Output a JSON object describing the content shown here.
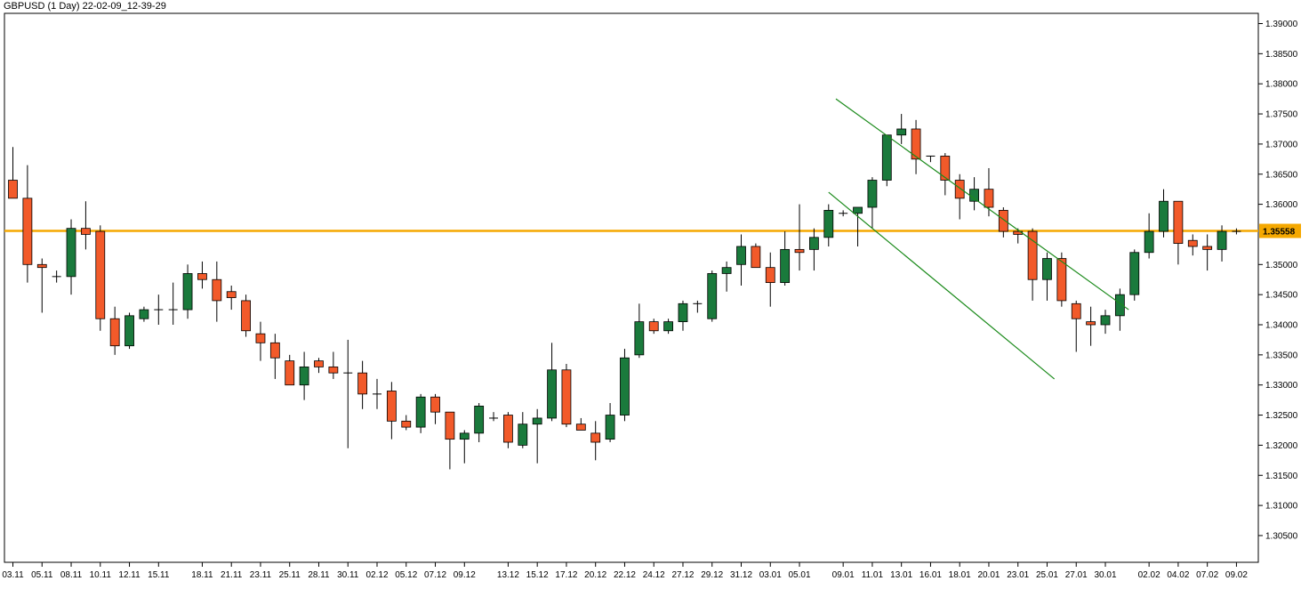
{
  "chart_data": {
    "type": "candlestick",
    "title": "GBPUSD (1 Day) 22-02-09_12-39-29",
    "symbol": "GBPUSD",
    "timeframe": "1 Day",
    "ylim": [
      1.3,
      1.392
    ],
    "y_ticks": [
      "1.39000",
      "1.38500",
      "1.38000",
      "1.37500",
      "1.37000",
      "1.36500",
      "1.36000",
      "1.35000",
      "1.34500",
      "1.34000",
      "1.33500",
      "1.33000",
      "1.32500",
      "1.32000",
      "1.31500",
      "1.31000",
      "1.30500"
    ],
    "current_price": "1.35558",
    "horizontal_line": {
      "value": 1.35558,
      "color": "#f5a800"
    },
    "colors": {
      "up": "#1a7a3c",
      "down": "#f25a2a",
      "channel": "#1a8a1a",
      "axis": "#000000"
    },
    "x_labels": [
      "03.11",
      "05.11",
      "08.11",
      "10.11",
      "12.11",
      "15.11",
      "18.11",
      "21.11",
      "23.11",
      "25.11",
      "28.11",
      "30.11",
      "02.12",
      "05.12",
      "07.12",
      "09.12",
      "13.12",
      "15.12",
      "17.12",
      "20.12",
      "22.12",
      "24.12",
      "27.12",
      "29.12",
      "31.12",
      "03.01",
      "05.01",
      "09.01",
      "11.01",
      "13.01",
      "16.01",
      "18.01",
      "20.01",
      "23.01",
      "25.01",
      "27.01",
      "30.01",
      "02.02",
      "04.02",
      "07.02",
      "09.02"
    ],
    "x_label_index": [
      0,
      2,
      4,
      6,
      8,
      10,
      13,
      15,
      17,
      19,
      21,
      23,
      25,
      27,
      29,
      31,
      34,
      36,
      38,
      40,
      42,
      44,
      46,
      48,
      50,
      52,
      54,
      57,
      59,
      61,
      63,
      65,
      67,
      69,
      71,
      73,
      75,
      78,
      80,
      82,
      84
    ],
    "candles": [
      [
        1.364,
        1.3695,
        1.361,
        1.361
      ],
      [
        1.361,
        1.3665,
        1.347,
        1.35
      ],
      [
        1.35,
        1.351,
        1.342,
        1.3495
      ],
      [
        1.348,
        1.349,
        1.347,
        1.348
      ],
      [
        1.348,
        1.3575,
        1.345,
        1.356
      ],
      [
        1.356,
        1.3605,
        1.3525,
        1.355
      ],
      [
        1.3555,
        1.3565,
        1.339,
        1.341
      ],
      [
        1.341,
        1.343,
        1.335,
        1.3365
      ],
      [
        1.3365,
        1.342,
        1.336,
        1.3415
      ],
      [
        1.341,
        1.343,
        1.3405,
        1.3425
      ],
      [
        1.3425,
        1.345,
        1.34,
        1.3425
      ],
      [
        1.3425,
        1.347,
        1.34,
        1.3425
      ],
      [
        1.3425,
        1.35,
        1.341,
        1.3485
      ],
      [
        1.3485,
        1.3505,
        1.346,
        1.3475
      ],
      [
        1.3475,
        1.3505,
        1.3405,
        1.344
      ],
      [
        1.3455,
        1.3465,
        1.3425,
        1.3445
      ],
      [
        1.344,
        1.345,
        1.338,
        1.339
      ],
      [
        1.3385,
        1.3405,
        1.334,
        1.337
      ],
      [
        1.337,
        1.3385,
        1.331,
        1.3345
      ],
      [
        1.334,
        1.335,
        1.33,
        1.33
      ],
      [
        1.33,
        1.3355,
        1.3275,
        1.333
      ],
      [
        1.334,
        1.3345,
        1.332,
        1.333
      ],
      [
        1.333,
        1.3355,
        1.331,
        1.332
      ],
      [
        1.332,
        1.3375,
        1.3195,
        1.332
      ],
      [
        1.332,
        1.334,
        1.326,
        1.3285
      ],
      [
        1.3285,
        1.331,
        1.326,
        1.3285
      ],
      [
        1.329,
        1.3305,
        1.321,
        1.324
      ],
      [
        1.324,
        1.325,
        1.3225,
        1.323
      ],
      [
        1.323,
        1.3285,
        1.322,
        1.328
      ],
      [
        1.328,
        1.3285,
        1.3235,
        1.3255
      ],
      [
        1.3255,
        1.3255,
        1.316,
        1.321
      ],
      [
        1.321,
        1.3225,
        1.317,
        1.322
      ],
      [
        1.322,
        1.327,
        1.3205,
        1.3265
      ],
      [
        1.3245,
        1.3255,
        1.324,
        1.3245
      ],
      [
        1.325,
        1.3255,
        1.3195,
        1.3205
      ],
      [
        1.32,
        1.3255,
        1.3195,
        1.3235
      ],
      [
        1.3235,
        1.326,
        1.317,
        1.3245
      ],
      [
        1.3245,
        1.337,
        1.324,
        1.3325
      ],
      [
        1.3325,
        1.3335,
        1.323,
        1.3235
      ],
      [
        1.3235,
        1.3245,
        1.3225,
        1.3225
      ],
      [
        1.322,
        1.324,
        1.3175,
        1.3205
      ],
      [
        1.321,
        1.327,
        1.3205,
        1.325
      ],
      [
        1.325,
        1.336,
        1.324,
        1.3345
      ],
      [
        1.335,
        1.3435,
        1.3345,
        1.3405
      ],
      [
        1.3405,
        1.341,
        1.3385,
        1.339
      ],
      [
        1.339,
        1.341,
        1.3385,
        1.3405
      ],
      [
        1.3405,
        1.344,
        1.339,
        1.3435
      ],
      [
        1.3435,
        1.344,
        1.342,
        1.3435
      ],
      [
        1.341,
        1.349,
        1.3405,
        1.3485
      ],
      [
        1.3485,
        1.3505,
        1.3455,
        1.3495
      ],
      [
        1.35,
        1.355,
        1.3465,
        1.353
      ],
      [
        1.353,
        1.3535,
        1.3495,
        1.3495
      ],
      [
        1.3495,
        1.352,
        1.343,
        1.347
      ],
      [
        1.347,
        1.3555,
        1.3465,
        1.3525
      ],
      [
        1.3525,
        1.36,
        1.349,
        1.352
      ],
      [
        1.3525,
        1.356,
        1.349,
        1.3545
      ],
      [
        1.3545,
        1.36,
        1.353,
        1.359
      ],
      [
        1.3585,
        1.359,
        1.358,
        1.3585
      ],
      [
        1.3585,
        1.3595,
        1.353,
        1.3595
      ],
      [
        1.3595,
        1.3645,
        1.356,
        1.364
      ],
      [
        1.364,
        1.3715,
        1.363,
        1.3715
      ],
      [
        1.3715,
        1.375,
        1.37,
        1.3725
      ],
      [
        1.3725,
        1.374,
        1.365,
        1.3675
      ],
      [
        1.368,
        1.368,
        1.367,
        1.368
      ],
      [
        1.368,
        1.3685,
        1.3615,
        1.364
      ],
      [
        1.364,
        1.365,
        1.3575,
        1.361
      ],
      [
        1.3605,
        1.3645,
        1.359,
        1.3625
      ],
      [
        1.3625,
        1.366,
        1.358,
        1.3595
      ],
      [
        1.359,
        1.3595,
        1.3545,
        1.3555
      ],
      [
        1.3555,
        1.356,
        1.3535,
        1.355
      ],
      [
        1.3555,
        1.356,
        1.344,
        1.3475
      ],
      [
        1.3475,
        1.352,
        1.344,
        1.351
      ],
      [
        1.351,
        1.352,
        1.343,
        1.344
      ],
      [
        1.3435,
        1.344,
        1.3355,
        1.341
      ],
      [
        1.3405,
        1.343,
        1.3365,
        1.34
      ],
      [
        1.34,
        1.3425,
        1.3385,
        1.3415
      ],
      [
        1.3415,
        1.346,
        1.339,
        1.345
      ],
      [
        1.345,
        1.3525,
        1.344,
        1.352
      ],
      [
        1.352,
        1.3585,
        1.351,
        1.3555
      ],
      [
        1.3555,
        1.3625,
        1.3545,
        1.3605
      ],
      [
        1.3605,
        1.3605,
        1.35,
        1.3535
      ],
      [
        1.354,
        1.355,
        1.3515,
        1.353
      ],
      [
        1.353,
        1.355,
        1.349,
        1.3525
      ],
      [
        1.3525,
        1.3565,
        1.3505,
        1.3555
      ],
      [
        1.3555,
        1.356,
        1.355,
        1.3555
      ]
    ],
    "trendlines": [
      {
        "from": [
          56.5,
          1.3775
        ],
        "to": [
          76.6,
          1.3425
        ]
      },
      {
        "from": [
          56.0,
          1.362
        ],
        "to": [
          71.5,
          1.331
        ]
      }
    ]
  }
}
